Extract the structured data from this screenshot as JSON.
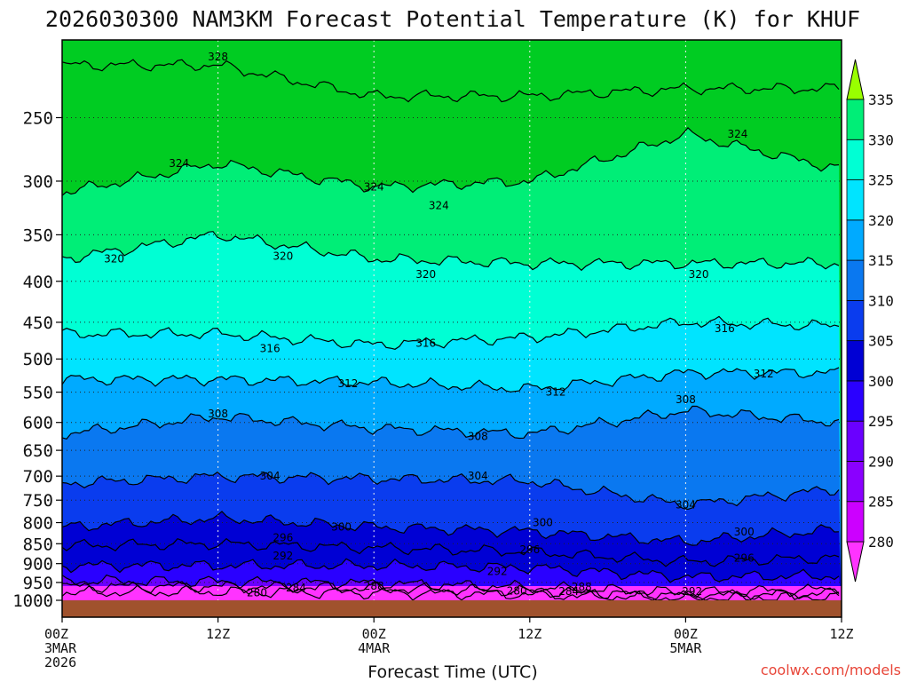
{
  "chart_data": {
    "type": "heatmap",
    "title": "2026030300 NAM3KM Forecast Potential Temperature (K) for KHUF",
    "xlabel": "Forecast Time (UTC)",
    "ylabel": "",
    "ylim": [
      1000,
      200
    ],
    "y_scale": "log-pressure",
    "x_range_hours": [
      0,
      60
    ],
    "x_ticks": [
      {
        "hour": 0,
        "lines": [
          "00Z",
          "3MAR",
          "2026"
        ]
      },
      {
        "hour": 12,
        "lines": [
          "12Z"
        ]
      },
      {
        "hour": 24,
        "lines": [
          "00Z",
          "4MAR"
        ]
      },
      {
        "hour": 36,
        "lines": [
          "12Z"
        ]
      },
      {
        "hour": 48,
        "lines": [
          "00Z",
          "5MAR"
        ]
      },
      {
        "hour": 60,
        "lines": [
          "12Z"
        ]
      }
    ],
    "y_ticks": [
      250,
      300,
      350,
      400,
      450,
      500,
      550,
      600,
      650,
      700,
      750,
      800,
      850,
      900,
      950,
      1000
    ],
    "colorbar": {
      "levels": [
        280,
        285,
        290,
        295,
        300,
        305,
        310,
        315,
        320,
        325,
        330,
        335
      ],
      "colors": [
        "#ff33ff",
        "#cc00ff",
        "#8a00ff",
        "#6a00ff",
        "#2a00ff",
        "#0000d4",
        "#0a3cee",
        "#0a78f0",
        "#00aaff",
        "#00e4ff",
        "#00ffd4",
        "#00ee77",
        "#00cc22",
        "#99ff00"
      ]
    },
    "series": [
      {
        "name": "280",
        "values": [
          [
            0,
            978
          ],
          [
            12,
            976
          ],
          [
            24,
            979
          ],
          [
            36,
            983
          ],
          [
            48,
            993
          ],
          [
            60,
            990
          ]
        ]
      },
      {
        "name": "284",
        "values": [
          [
            0,
            962
          ],
          [
            12,
            961
          ],
          [
            24,
            965
          ],
          [
            36,
            975
          ],
          [
            48,
            987
          ],
          [
            60,
            980
          ]
        ]
      },
      {
        "name": "288",
        "values": [
          [
            0,
            945
          ],
          [
            12,
            948
          ],
          [
            24,
            952
          ],
          [
            36,
            963
          ],
          [
            48,
            978
          ],
          [
            60,
            968
          ]
        ]
      },
      {
        "name": "292",
        "values": [
          [
            0,
            905
          ],
          [
            12,
            905
          ],
          [
            24,
            905
          ],
          [
            36,
            910
          ],
          [
            48,
            935
          ],
          [
            60,
            932
          ]
        ]
      },
      {
        "name": "296",
        "values": [
          [
            0,
            855
          ],
          [
            12,
            850
          ],
          [
            24,
            860
          ],
          [
            36,
            870
          ],
          [
            48,
            895
          ],
          [
            60,
            885
          ]
        ]
      },
      {
        "name": "300",
        "values": [
          [
            0,
            810
          ],
          [
            12,
            790
          ],
          [
            24,
            810
          ],
          [
            36,
            820
          ],
          [
            48,
            845
          ],
          [
            60,
            815
          ]
        ]
      },
      {
        "name": "304",
        "values": [
          [
            0,
            715
          ],
          [
            12,
            700
          ],
          [
            24,
            705
          ],
          [
            36,
            710
          ],
          [
            48,
            760
          ],
          [
            60,
            725
          ]
        ]
      },
      {
        "name": "308",
        "values": [
          [
            0,
            620
          ],
          [
            12,
            590
          ],
          [
            24,
            610
          ],
          [
            36,
            620
          ],
          [
            48,
            580
          ],
          [
            60,
            600
          ]
        ]
      },
      {
        "name": "312",
        "values": [
          [
            0,
            530
          ],
          [
            12,
            530
          ],
          [
            24,
            535
          ],
          [
            36,
            545
          ],
          [
            48,
            520
          ],
          [
            60,
            520
          ]
        ]
      },
      {
        "name": "316",
        "values": [
          [
            0,
            465
          ],
          [
            12,
            465
          ],
          [
            24,
            480
          ],
          [
            36,
            470
          ],
          [
            48,
            450
          ],
          [
            60,
            455
          ]
        ]
      },
      {
        "name": "320",
        "values": [
          [
            0,
            375
          ],
          [
            12,
            350
          ],
          [
            24,
            375
          ],
          [
            36,
            380
          ],
          [
            48,
            380
          ],
          [
            60,
            380
          ]
        ]
      },
      {
        "name": "324",
        "values": [
          [
            0,
            310
          ],
          [
            12,
            285
          ],
          [
            24,
            305
          ],
          [
            36,
            300
          ],
          [
            48,
            262
          ],
          [
            60,
            290
          ]
        ]
      },
      {
        "name": "328",
        "values": [
          [
            0,
            215
          ],
          [
            12,
            215
          ],
          [
            24,
            235
          ],
          [
            36,
            235
          ],
          [
            48,
            230
          ],
          [
            60,
            230
          ]
        ]
      }
    ],
    "contour_labels": [
      {
        "text": "328",
        "hour": 12.0,
        "p": 210
      },
      {
        "text": "324",
        "hour": 9.0,
        "p": 285
      },
      {
        "text": "324",
        "hour": 24.0,
        "p": 305
      },
      {
        "text": "324",
        "hour": 29.0,
        "p": 322
      },
      {
        "text": "324",
        "hour": 52.0,
        "p": 262
      },
      {
        "text": "320",
        "hour": 4.0,
        "p": 375
      },
      {
        "text": "320",
        "hour": 17.0,
        "p": 372
      },
      {
        "text": "320",
        "hour": 28.0,
        "p": 392
      },
      {
        "text": "320",
        "hour": 49.0,
        "p": 392
      },
      {
        "text": "316",
        "hour": 16.0,
        "p": 485
      },
      {
        "text": "316",
        "hour": 28.0,
        "p": 478
      },
      {
        "text": "316",
        "hour": 51.0,
        "p": 458
      },
      {
        "text": "312",
        "hour": 22.0,
        "p": 537
      },
      {
        "text": "312",
        "hour": 38.0,
        "p": 550
      },
      {
        "text": "312",
        "hour": 54.0,
        "p": 522
      },
      {
        "text": "308",
        "hour": 12.0,
        "p": 585
      },
      {
        "text": "308",
        "hour": 32.0,
        "p": 625
      },
      {
        "text": "308",
        "hour": 48.0,
        "p": 562
      },
      {
        "text": "304",
        "hour": 16.0,
        "p": 700
      },
      {
        "text": "304",
        "hour": 32.0,
        "p": 700
      },
      {
        "text": "304",
        "hour": 48.0,
        "p": 760
      },
      {
        "text": "300",
        "hour": 21.5,
        "p": 810
      },
      {
        "text": "300",
        "hour": 37.0,
        "p": 800
      },
      {
        "text": "300",
        "hour": 52.5,
        "p": 822
      },
      {
        "text": "296",
        "hour": 17.0,
        "p": 835
      },
      {
        "text": "296",
        "hour": 36.0,
        "p": 865
      },
      {
        "text": "296",
        "hour": 52.5,
        "p": 886
      },
      {
        "text": "292",
        "hour": 17.0,
        "p": 880
      },
      {
        "text": "292",
        "hour": 33.5,
        "p": 920
      },
      {
        "text": "292",
        "hour": 48.5,
        "p": 975
      },
      {
        "text": "288",
        "hour": 24.0,
        "p": 960
      },
      {
        "text": "288",
        "hour": 40.0,
        "p": 963
      },
      {
        "text": "284",
        "hour": 18.0,
        "p": 965
      },
      {
        "text": "284",
        "hour": 39.0,
        "p": 975
      },
      {
        "text": "280",
        "hour": 15.0,
        "p": 978
      },
      {
        "text": "280",
        "hour": 35.0,
        "p": 973
      }
    ]
  },
  "footer": {
    "credit": "coolwx.com/models"
  }
}
